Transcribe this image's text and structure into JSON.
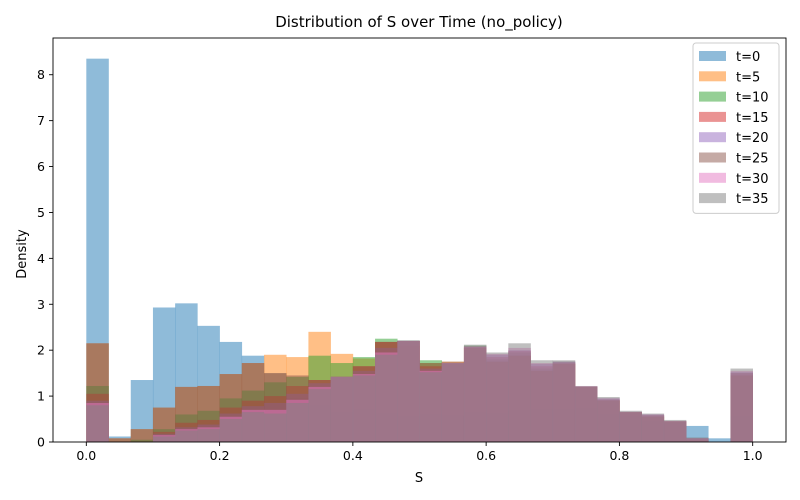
{
  "chart_data": {
    "type": "bar",
    "title": "Distribution of S over Time (no_policy)",
    "xlabel": "S",
    "ylabel": "Density",
    "xlim": [
      -0.05,
      1.05
    ],
    "ylim": [
      0,
      8.8
    ],
    "xticks": [
      0.0,
      0.2,
      0.4,
      0.6,
      0.8,
      1.0
    ],
    "xtick_labels": [
      "0.0",
      "0.2",
      "0.4",
      "0.6",
      "0.8",
      "1.0"
    ],
    "yticks": [
      0,
      1,
      2,
      3,
      4,
      5,
      6,
      7,
      8
    ],
    "ytick_labels": [
      "0",
      "1",
      "2",
      "3",
      "4",
      "5",
      "6",
      "7",
      "8"
    ],
    "grid": false,
    "legend_position": "top-right",
    "bin_width": 0.0333,
    "bin_starts": [
      0.0,
      0.0333,
      0.0667,
      0.1,
      0.1333,
      0.1667,
      0.2,
      0.2333,
      0.2667,
      0.3,
      0.3333,
      0.3667,
      0.4,
      0.4333,
      0.4667,
      0.5,
      0.5333,
      0.5667,
      0.6,
      0.6333,
      0.6667,
      0.7,
      0.7333,
      0.7667,
      0.8,
      0.8333,
      0.8667,
      0.9,
      0.9333,
      0.9667
    ],
    "series": [
      {
        "name": "t=0",
        "color": "#1f77b4",
        "values": [
          8.35,
          0.12,
          1.35,
          2.93,
          3.02,
          2.53,
          2.18,
          1.88,
          1.5,
          0.95,
          0.8,
          0.65,
          0.7,
          0.62,
          0.55,
          0.6,
          0.58,
          0.65,
          0.62,
          0.68,
          0.72,
          0.7,
          0.74,
          0.6,
          0.55,
          0.45,
          0.4,
          0.35,
          0.08,
          0.55
        ]
      },
      {
        "name": "t=5",
        "color": "#ff7f0e",
        "values": [
          2.15,
          0.08,
          0.28,
          0.75,
          1.2,
          1.22,
          1.48,
          1.72,
          1.9,
          1.85,
          2.4,
          1.92,
          1.82,
          2.18,
          2.1,
          1.72,
          1.75,
          2.05,
          1.75,
          1.88,
          1.55,
          1.7,
          1.2,
          0.9,
          0.65,
          0.55,
          0.45,
          0.05,
          0.0,
          1.45
        ]
      },
      {
        "name": "t=10",
        "color": "#2ca02c",
        "values": [
          1.22,
          0.0,
          0.05,
          0.28,
          0.6,
          0.68,
          0.95,
          1.12,
          1.3,
          1.42,
          1.88,
          1.72,
          1.85,
          2.25,
          2.2,
          1.78,
          1.7,
          2.1,
          1.8,
          1.95,
          1.6,
          1.75,
          1.2,
          0.92,
          0.65,
          0.58,
          0.45,
          0.08,
          0.0,
          1.5
        ]
      },
      {
        "name": "t=15",
        "color": "#d62728",
        "values": [
          1.05,
          0.0,
          0.0,
          0.22,
          0.42,
          0.48,
          0.75,
          0.9,
          1.0,
          1.22,
          1.35,
          1.42,
          1.65,
          2.18,
          2.2,
          1.65,
          1.72,
          2.08,
          1.85,
          1.98,
          1.65,
          1.72,
          1.2,
          0.92,
          0.65,
          0.58,
          0.45,
          0.08,
          0.0,
          1.5
        ]
      },
      {
        "name": "t=20",
        "color": "#9467bd",
        "values": [
          0.9,
          0.0,
          0.0,
          0.18,
          0.32,
          0.38,
          0.62,
          0.78,
          0.85,
          1.05,
          1.28,
          1.42,
          1.55,
          2.05,
          2.2,
          1.6,
          1.72,
          2.08,
          1.9,
          2.0,
          1.7,
          1.75,
          1.2,
          0.95,
          0.65,
          0.6,
          0.45,
          0.08,
          0.0,
          1.52
        ]
      },
      {
        "name": "t=25",
        "color": "#8c564b",
        "values": [
          2.15,
          0.08,
          0.28,
          0.75,
          1.2,
          1.22,
          1.48,
          1.72,
          1.5,
          1.45,
          1.35,
          1.42,
          1.65,
          2.18,
          2.2,
          1.72,
          1.75,
          2.05,
          1.75,
          1.88,
          1.55,
          1.7,
          1.2,
          0.9,
          0.65,
          0.55,
          0.45,
          0.05,
          0.0,
          1.45
        ]
      },
      {
        "name": "t=30",
        "color": "#e377c2",
        "values": [
          0.85,
          0.0,
          0.0,
          0.15,
          0.28,
          0.32,
          0.55,
          0.7,
          0.7,
          0.92,
          1.2,
          1.42,
          1.48,
          1.95,
          2.2,
          1.55,
          1.72,
          2.08,
          1.92,
          2.05,
          1.72,
          1.75,
          1.22,
          0.95,
          0.66,
          0.6,
          0.46,
          0.08,
          0.0,
          1.55
        ]
      },
      {
        "name": "t=35",
        "color": "#7f7f7f",
        "values": [
          0.8,
          0.0,
          0.0,
          0.12,
          0.25,
          0.28,
          0.5,
          0.65,
          0.62,
          0.85,
          1.15,
          1.42,
          1.45,
          1.9,
          2.22,
          1.52,
          1.72,
          2.12,
          1.95,
          2.15,
          1.78,
          1.78,
          1.22,
          0.98,
          0.68,
          0.62,
          0.48,
          0.1,
          0.0,
          1.6
        ]
      }
    ]
  }
}
